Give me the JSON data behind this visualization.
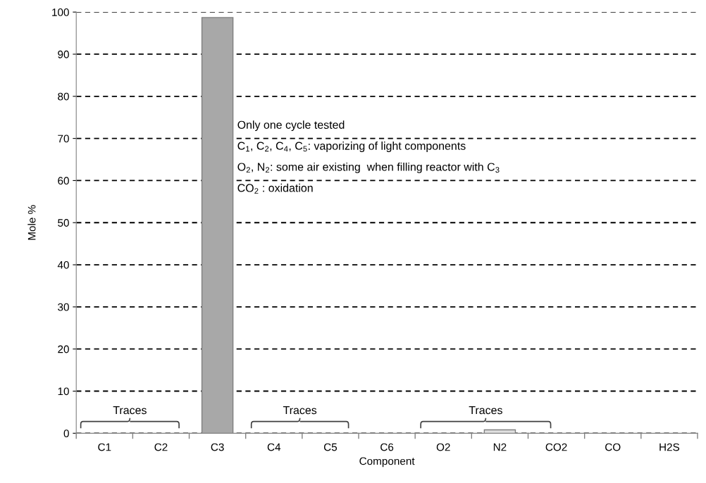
{
  "chart_data": {
    "type": "bar",
    "categories": [
      "C1",
      "C2",
      "C3",
      "C4",
      "C5",
      "C6",
      "O2",
      "N2",
      "CO2",
      "CO",
      "H2S"
    ],
    "values": [
      0,
      0,
      98.7,
      0,
      0,
      0,
      0,
      0.8,
      0,
      0,
      0
    ],
    "colors": [
      "#a8a8a8",
      "#a8a8a8",
      "#a8a8a8",
      "#a8a8a8",
      "#a8a8a8",
      "#a8a8a8",
      "#a8a8a8",
      "#e0e0e0",
      "#a8a8a8",
      "#a8a8a8",
      "#a8a8a8"
    ],
    "xlabel": "Component",
    "ylabel": "Mole %",
    "ylim": [
      0,
      100
    ],
    "yticks": [
      0,
      10,
      20,
      30,
      40,
      50,
      60,
      70,
      80,
      90,
      100
    ],
    "grid": "y",
    "annotations": [
      "Only one cycle tested",
      "C$_{1}$, C$_{2}$, C$_{4}$, C$_{5}$: vaporizing of light components",
      "O$_{2}$, N$_{2}$: some air existing  when filling reactor with C$_{3}$",
      "CO$_{2}$ : oxidation",
      "Traces",
      "Traces",
      "Traces"
    ]
  }
}
